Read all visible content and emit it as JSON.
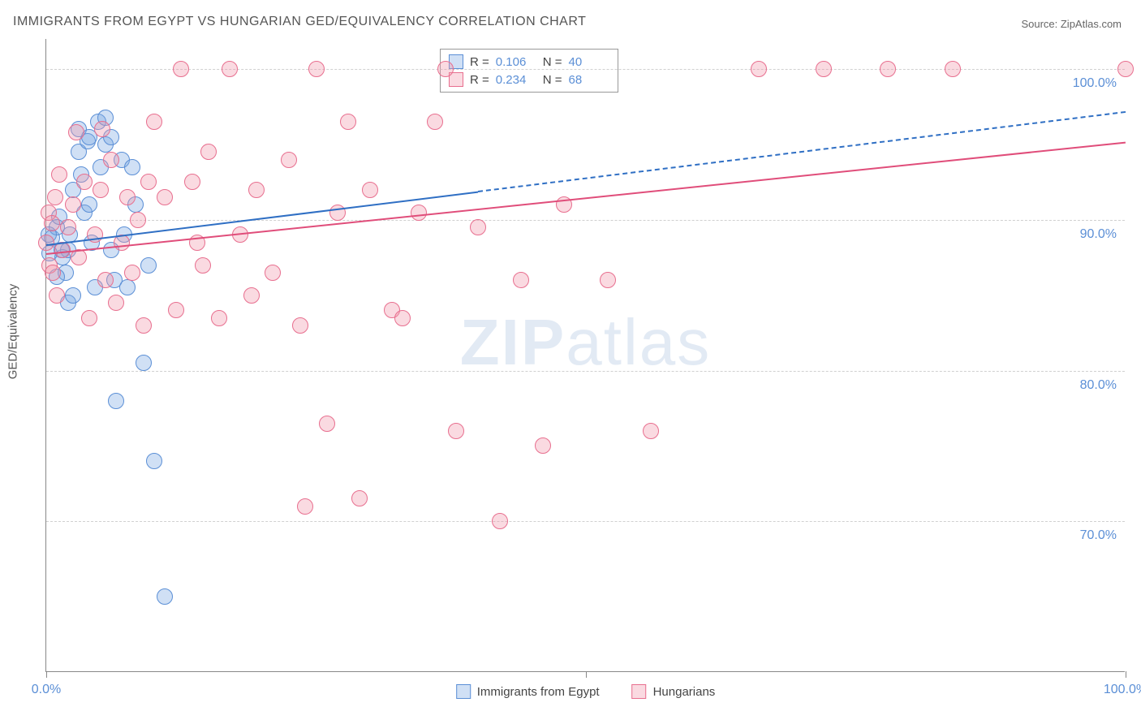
{
  "title": "IMMIGRANTS FROM EGYPT VS HUNGARIAN GED/EQUIVALENCY CORRELATION CHART",
  "source": "Source: ZipAtlas.com",
  "y_axis_label": "GED/Equivalency",
  "watermark_a": "ZIP",
  "watermark_b": "atlas",
  "chart": {
    "type": "scatter",
    "background_color": "#ffffff",
    "grid_color": "#d0d0d0",
    "axis_color": "#888888",
    "label_color": "#5b8fd6",
    "xlim": [
      0,
      100
    ],
    "ylim": [
      60,
      102
    ],
    "y_ticks": [
      70,
      80,
      90,
      100
    ],
    "y_tick_labels": [
      "70.0%",
      "80.0%",
      "90.0%",
      "100.0%"
    ],
    "x_ticks": [
      0,
      50,
      100
    ],
    "x_tick_labels": [
      "0.0%",
      "",
      "100.0%"
    ],
    "marker_radius": 10,
    "series": [
      {
        "id": "egypt",
        "label": "Immigrants from Egypt",
        "color_fill": "rgba(120,165,225,0.35)",
        "color_stroke": "#5b8fd6",
        "r_value": "0.106",
        "n_value": "40",
        "trend": {
          "x1": 0,
          "y1": 88.4,
          "x2": 100,
          "y2": 97.2,
          "solid_until_x": 40,
          "color": "#2f6fc4",
          "width": 2
        },
        "points": [
          [
            0.5,
            88.8
          ],
          [
            1,
            89.5
          ],
          [
            1.2,
            90.2
          ],
          [
            1.5,
            87.5
          ],
          [
            1.8,
            86.5
          ],
          [
            2,
            88.0
          ],
          [
            2.2,
            89.0
          ],
          [
            2.5,
            92.0
          ],
          [
            3,
            94.5
          ],
          [
            3.2,
            93.0
          ],
          [
            3.5,
            90.5
          ],
          [
            3.8,
            95.2
          ],
          [
            4,
            91.0
          ],
          [
            4.2,
            88.5
          ],
          [
            4.5,
            85.5
          ],
          [
            4.8,
            96.5
          ],
          [
            5,
            93.5
          ],
          [
            5.5,
            95.0
          ],
          [
            6,
            88.0
          ],
          [
            6.3,
            86.0
          ],
          [
            6.5,
            78.0
          ],
          [
            7,
            94.0
          ],
          [
            7.2,
            89.0
          ],
          [
            7.5,
            85.5
          ],
          [
            8,
            93.5
          ],
          [
            8.3,
            91.0
          ],
          [
            9,
            80.5
          ],
          [
            9.5,
            87.0
          ],
          [
            10,
            74.0
          ],
          [
            11,
            65.0
          ],
          [
            5.5,
            96.8
          ],
          [
            3.0,
            96.0
          ],
          [
            2.0,
            84.5
          ],
          [
            4.0,
            95.5
          ],
          [
            6.0,
            95.5
          ],
          [
            2.5,
            85.0
          ],
          [
            1.0,
            86.2
          ],
          [
            1.4,
            88.0
          ],
          [
            0.2,
            89.0
          ],
          [
            0.3,
            87.8
          ]
        ]
      },
      {
        "id": "hungarians",
        "label": "Hungarians",
        "color_fill": "rgba(240,150,170,0.35)",
        "color_stroke": "#e86f8f",
        "r_value": "0.234",
        "n_value": "68",
        "trend": {
          "x1": 0,
          "y1": 87.8,
          "x2": 100,
          "y2": 95.2,
          "solid_until_x": 100,
          "color": "#e04d7a",
          "width": 2
        },
        "points": [
          [
            0.0,
            88.5
          ],
          [
            0.2,
            90.5
          ],
          [
            0.3,
            87.0
          ],
          [
            0.5,
            89.8
          ],
          [
            0.6,
            86.5
          ],
          [
            0.8,
            91.5
          ],
          [
            1.0,
            85.0
          ],
          [
            1.2,
            93.0
          ],
          [
            1.5,
            88.0
          ],
          [
            2.0,
            89.5
          ],
          [
            2.5,
            91.0
          ],
          [
            3.0,
            87.5
          ],
          [
            3.5,
            92.5
          ],
          [
            4.0,
            83.5
          ],
          [
            4.5,
            89.0
          ],
          [
            5.0,
            92.0
          ],
          [
            5.5,
            86.0
          ],
          [
            6.0,
            94.0
          ],
          [
            6.5,
            84.5
          ],
          [
            7.0,
            88.5
          ],
          [
            7.5,
            91.5
          ],
          [
            8.0,
            86.5
          ],
          [
            8.5,
            90.0
          ],
          [
            9.0,
            83.0
          ],
          [
            10.0,
            96.5
          ],
          [
            11.0,
            91.5
          ],
          [
            12.0,
            84.0
          ],
          [
            13.5,
            92.5
          ],
          [
            14.5,
            87.0
          ],
          [
            15.0,
            94.5
          ],
          [
            16.0,
            83.5
          ],
          [
            17.0,
            100.0
          ],
          [
            18.0,
            89.0
          ],
          [
            19.5,
            92.0
          ],
          [
            21.0,
            86.5
          ],
          [
            22.5,
            94.0
          ],
          [
            23.5,
            83.0
          ],
          [
            25.0,
            100.0
          ],
          [
            26.0,
            76.5
          ],
          [
            27.0,
            90.5
          ],
          [
            28.0,
            96.5
          ],
          [
            29.0,
            71.5
          ],
          [
            30.0,
            92.0
          ],
          [
            32.0,
            84.0
          ],
          [
            33.0,
            83.5
          ],
          [
            34.5,
            90.5
          ],
          [
            36.0,
            96.5
          ],
          [
            37.0,
            100.0
          ],
          [
            38.0,
            76.0
          ],
          [
            40.0,
            89.5
          ],
          [
            42.0,
            70.0
          ],
          [
            44.0,
            86.0
          ],
          [
            46.0,
            75.0
          ],
          [
            48.0,
            91.0
          ],
          [
            52.0,
            86.0
          ],
          [
            56.0,
            76.0
          ],
          [
            66.0,
            100.0
          ],
          [
            72.0,
            100.0
          ],
          [
            78.0,
            100.0
          ],
          [
            84.0,
            100.0
          ],
          [
            100.0,
            100.0
          ],
          [
            12.5,
            100.0
          ],
          [
            14.0,
            88.5
          ],
          [
            19.0,
            85.0
          ],
          [
            24.0,
            71.0
          ],
          [
            2.8,
            95.8
          ],
          [
            5.2,
            96.0
          ],
          [
            9.5,
            92.5
          ]
        ]
      }
    ]
  },
  "legend_bottom": [
    {
      "series": "egypt",
      "label": "Immigrants from Egypt"
    },
    {
      "series": "hungarians",
      "label": "Hungarians"
    }
  ]
}
